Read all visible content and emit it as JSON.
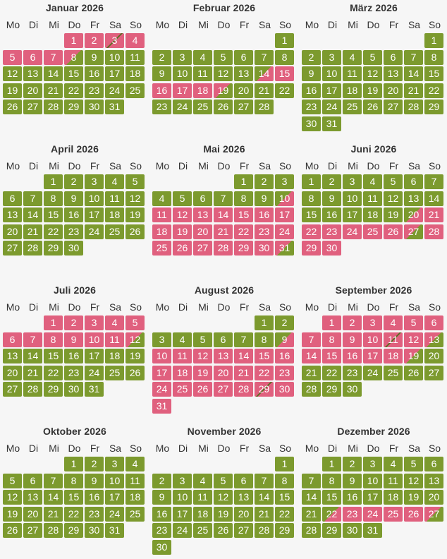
{
  "weekday_labels": [
    "Mo",
    "Di",
    "Mi",
    "Do",
    "Fr",
    "Sa",
    "So"
  ],
  "legend_colors": {
    "free": "#7c9a2e",
    "busy": "#e0607e"
  },
  "months": [
    {
      "title": "Januar 2026",
      "offset": 3,
      "days": 31,
      "status": [
        "busy",
        "busy",
        "change",
        "busy",
        "busy",
        "busy",
        "busy",
        "dep-busy",
        "free",
        "free",
        "free",
        "free",
        "free",
        "free",
        "free",
        "free",
        "free",
        "free",
        "free",
        "free",
        "free",
        "free",
        "free",
        "free",
        "free",
        "free",
        "free",
        "free",
        "free",
        "free",
        "free"
      ]
    },
    {
      "title": "Februar 2026",
      "offset": 6,
      "days": 28,
      "status": [
        "free",
        "free",
        "free",
        "free",
        "free",
        "free",
        "free",
        "free",
        "free",
        "free",
        "free",
        "free",
        "free",
        "arr-busy",
        "busy",
        "busy",
        "busy",
        "busy",
        "dep-busy",
        "free",
        "free",
        "free",
        "free",
        "free",
        "free",
        "free",
        "free",
        "free"
      ]
    },
    {
      "title": "März 2026",
      "offset": 6,
      "days": 31,
      "status": [
        "free",
        "free",
        "free",
        "free",
        "free",
        "free",
        "free",
        "free",
        "free",
        "free",
        "free",
        "free",
        "free",
        "free",
        "free",
        "free",
        "free",
        "free",
        "free",
        "free",
        "free",
        "free",
        "free",
        "free",
        "free",
        "free",
        "free",
        "free",
        "free",
        "free",
        "free"
      ]
    },
    {
      "title": "April 2026",
      "offset": 2,
      "days": 30,
      "status": [
        "free",
        "free",
        "free",
        "free",
        "free",
        "free",
        "free",
        "free",
        "free",
        "free",
        "free",
        "free",
        "free",
        "free",
        "free",
        "free",
        "free",
        "free",
        "free",
        "free",
        "free",
        "free",
        "free",
        "free",
        "free",
        "free",
        "free",
        "free",
        "free",
        "free"
      ]
    },
    {
      "title": "Mai 2026",
      "offset": 4,
      "days": 31,
      "status": [
        "free",
        "free",
        "free",
        "free",
        "free",
        "free",
        "free",
        "free",
        "free",
        "arr-busy",
        "busy",
        "busy",
        "busy",
        "busy",
        "busy",
        "busy",
        "busy",
        "busy",
        "busy",
        "busy",
        "busy",
        "busy",
        "busy",
        "busy",
        "busy",
        "busy",
        "busy",
        "busy",
        "busy",
        "busy",
        "dep-busy"
      ]
    },
    {
      "title": "Juni 2026",
      "offset": 0,
      "days": 30,
      "status": [
        "free",
        "free",
        "free",
        "free",
        "free",
        "free",
        "free",
        "free",
        "free",
        "free",
        "free",
        "free",
        "free",
        "free",
        "free",
        "free",
        "free",
        "free",
        "free",
        "arr-busy",
        "busy",
        "busy",
        "busy",
        "busy",
        "busy",
        "busy",
        "dep-busy",
        "busy",
        "busy",
        "busy"
      ]
    },
    {
      "title": "Juli 2026",
      "offset": 2,
      "days": 31,
      "status": [
        "busy",
        "busy",
        "busy",
        "busy",
        "busy",
        "busy",
        "busy",
        "busy",
        "busy",
        "busy",
        "busy",
        "dep-busy",
        "free",
        "free",
        "free",
        "free",
        "free",
        "free",
        "free",
        "free",
        "free",
        "free",
        "free",
        "free",
        "free",
        "free",
        "free",
        "free",
        "free",
        "free",
        "free"
      ]
    },
    {
      "title": "August 2026",
      "offset": 5,
      "days": 31,
      "status": [
        "free",
        "free",
        "free",
        "free",
        "free",
        "free",
        "free",
        "free",
        "arr-busy",
        "busy",
        "busy",
        "busy",
        "busy",
        "busy",
        "busy",
        "busy",
        "busy",
        "busy",
        "busy",
        "busy",
        "busy",
        "busy",
        "busy",
        "busy",
        "busy",
        "busy",
        "busy",
        "busy",
        "change",
        "busy",
        "busy"
      ]
    },
    {
      "title": "September 2026",
      "offset": 1,
      "days": 30,
      "status": [
        "busy",
        "busy",
        "busy",
        "busy",
        "busy",
        "busy",
        "busy",
        "busy",
        "busy",
        "busy",
        "change",
        "busy",
        "dep-busy",
        "busy",
        "busy",
        "busy",
        "busy",
        "busy",
        "dep-busy",
        "free",
        "free",
        "free",
        "free",
        "free",
        "free",
        "free",
        "free",
        "free",
        "free",
        "free"
      ]
    },
    {
      "title": "Oktober 2026",
      "offset": 3,
      "days": 31,
      "status": [
        "free",
        "free",
        "free",
        "free",
        "free",
        "free",
        "free",
        "free",
        "free",
        "free",
        "free",
        "free",
        "free",
        "free",
        "free",
        "free",
        "free",
        "free",
        "free",
        "free",
        "free",
        "free",
        "free",
        "free",
        "free",
        "free",
        "free",
        "free",
        "free",
        "free",
        "free"
      ]
    },
    {
      "title": "November 2026",
      "offset": 6,
      "days": 30,
      "status": [
        "free",
        "free",
        "free",
        "free",
        "free",
        "free",
        "free",
        "free",
        "free",
        "free",
        "free",
        "free",
        "free",
        "free",
        "free",
        "free",
        "free",
        "free",
        "free",
        "free",
        "free",
        "free",
        "free",
        "free",
        "free",
        "free",
        "free",
        "free",
        "free",
        "free"
      ]
    },
    {
      "title": "Dezember 2026",
      "offset": 1,
      "days": 31,
      "status": [
        "free",
        "free",
        "free",
        "free",
        "free",
        "free",
        "free",
        "free",
        "free",
        "free",
        "free",
        "free",
        "free",
        "free",
        "free",
        "free",
        "free",
        "free",
        "free",
        "free",
        "free",
        "arr-busy",
        "busy",
        "busy",
        "busy",
        "busy",
        "dep-busy",
        "free",
        "free",
        "free",
        "free"
      ]
    }
  ]
}
